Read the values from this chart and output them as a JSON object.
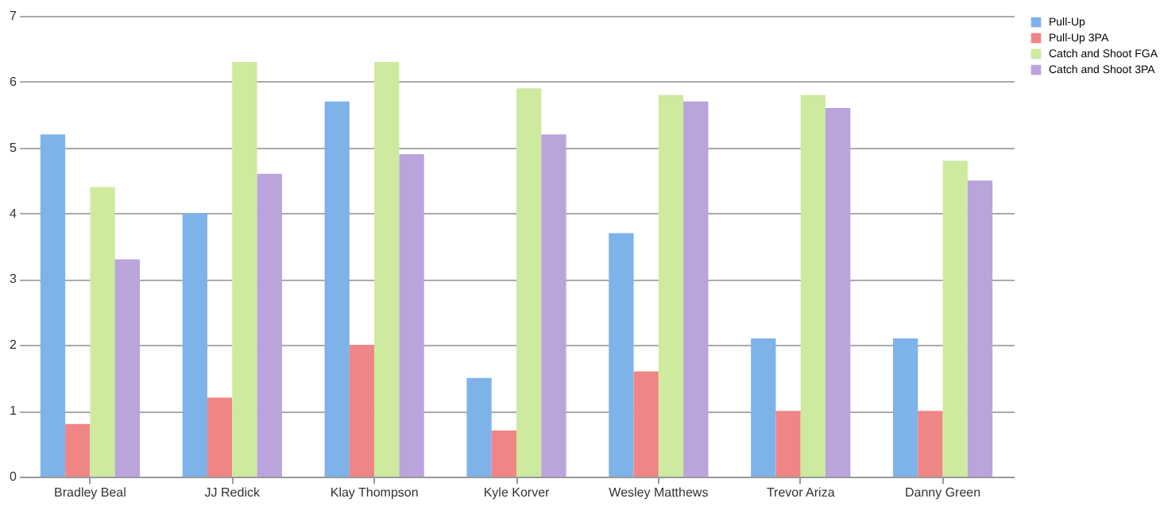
{
  "chart_data": {
    "type": "bar",
    "categories": [
      "Bradley Beal",
      "JJ Redick",
      "Klay Thompson",
      "Kyle Korver",
      "Wesley Matthews",
      "Trevor Ariza",
      "Danny Green"
    ],
    "series": [
      {
        "name": "Pull-Up",
        "color": "#7eb3ea",
        "values": [
          5.2,
          4.0,
          5.7,
          1.5,
          3.7,
          2.1,
          2.1
        ]
      },
      {
        "name": "Pull-Up 3PA",
        "color": "#f08585",
        "values": [
          0.8,
          1.2,
          2.0,
          0.7,
          1.6,
          1.0,
          1.0
        ]
      },
      {
        "name": "Catch and Shoot FGA",
        "color": "#cdea9f",
        "values": [
          4.4,
          6.3,
          6.3,
          5.9,
          5.8,
          5.8,
          4.8
        ]
      },
      {
        "name": "Catch and Shoot 3PA",
        "color": "#bba3dc",
        "values": [
          3.3,
          4.6,
          4.9,
          5.2,
          5.7,
          5.6,
          4.5
        ]
      }
    ],
    "ylim": [
      0,
      7
    ],
    "yticks": [
      0,
      1,
      2,
      3,
      4,
      5,
      6,
      7
    ],
    "grid": "y",
    "legend": "right"
  }
}
